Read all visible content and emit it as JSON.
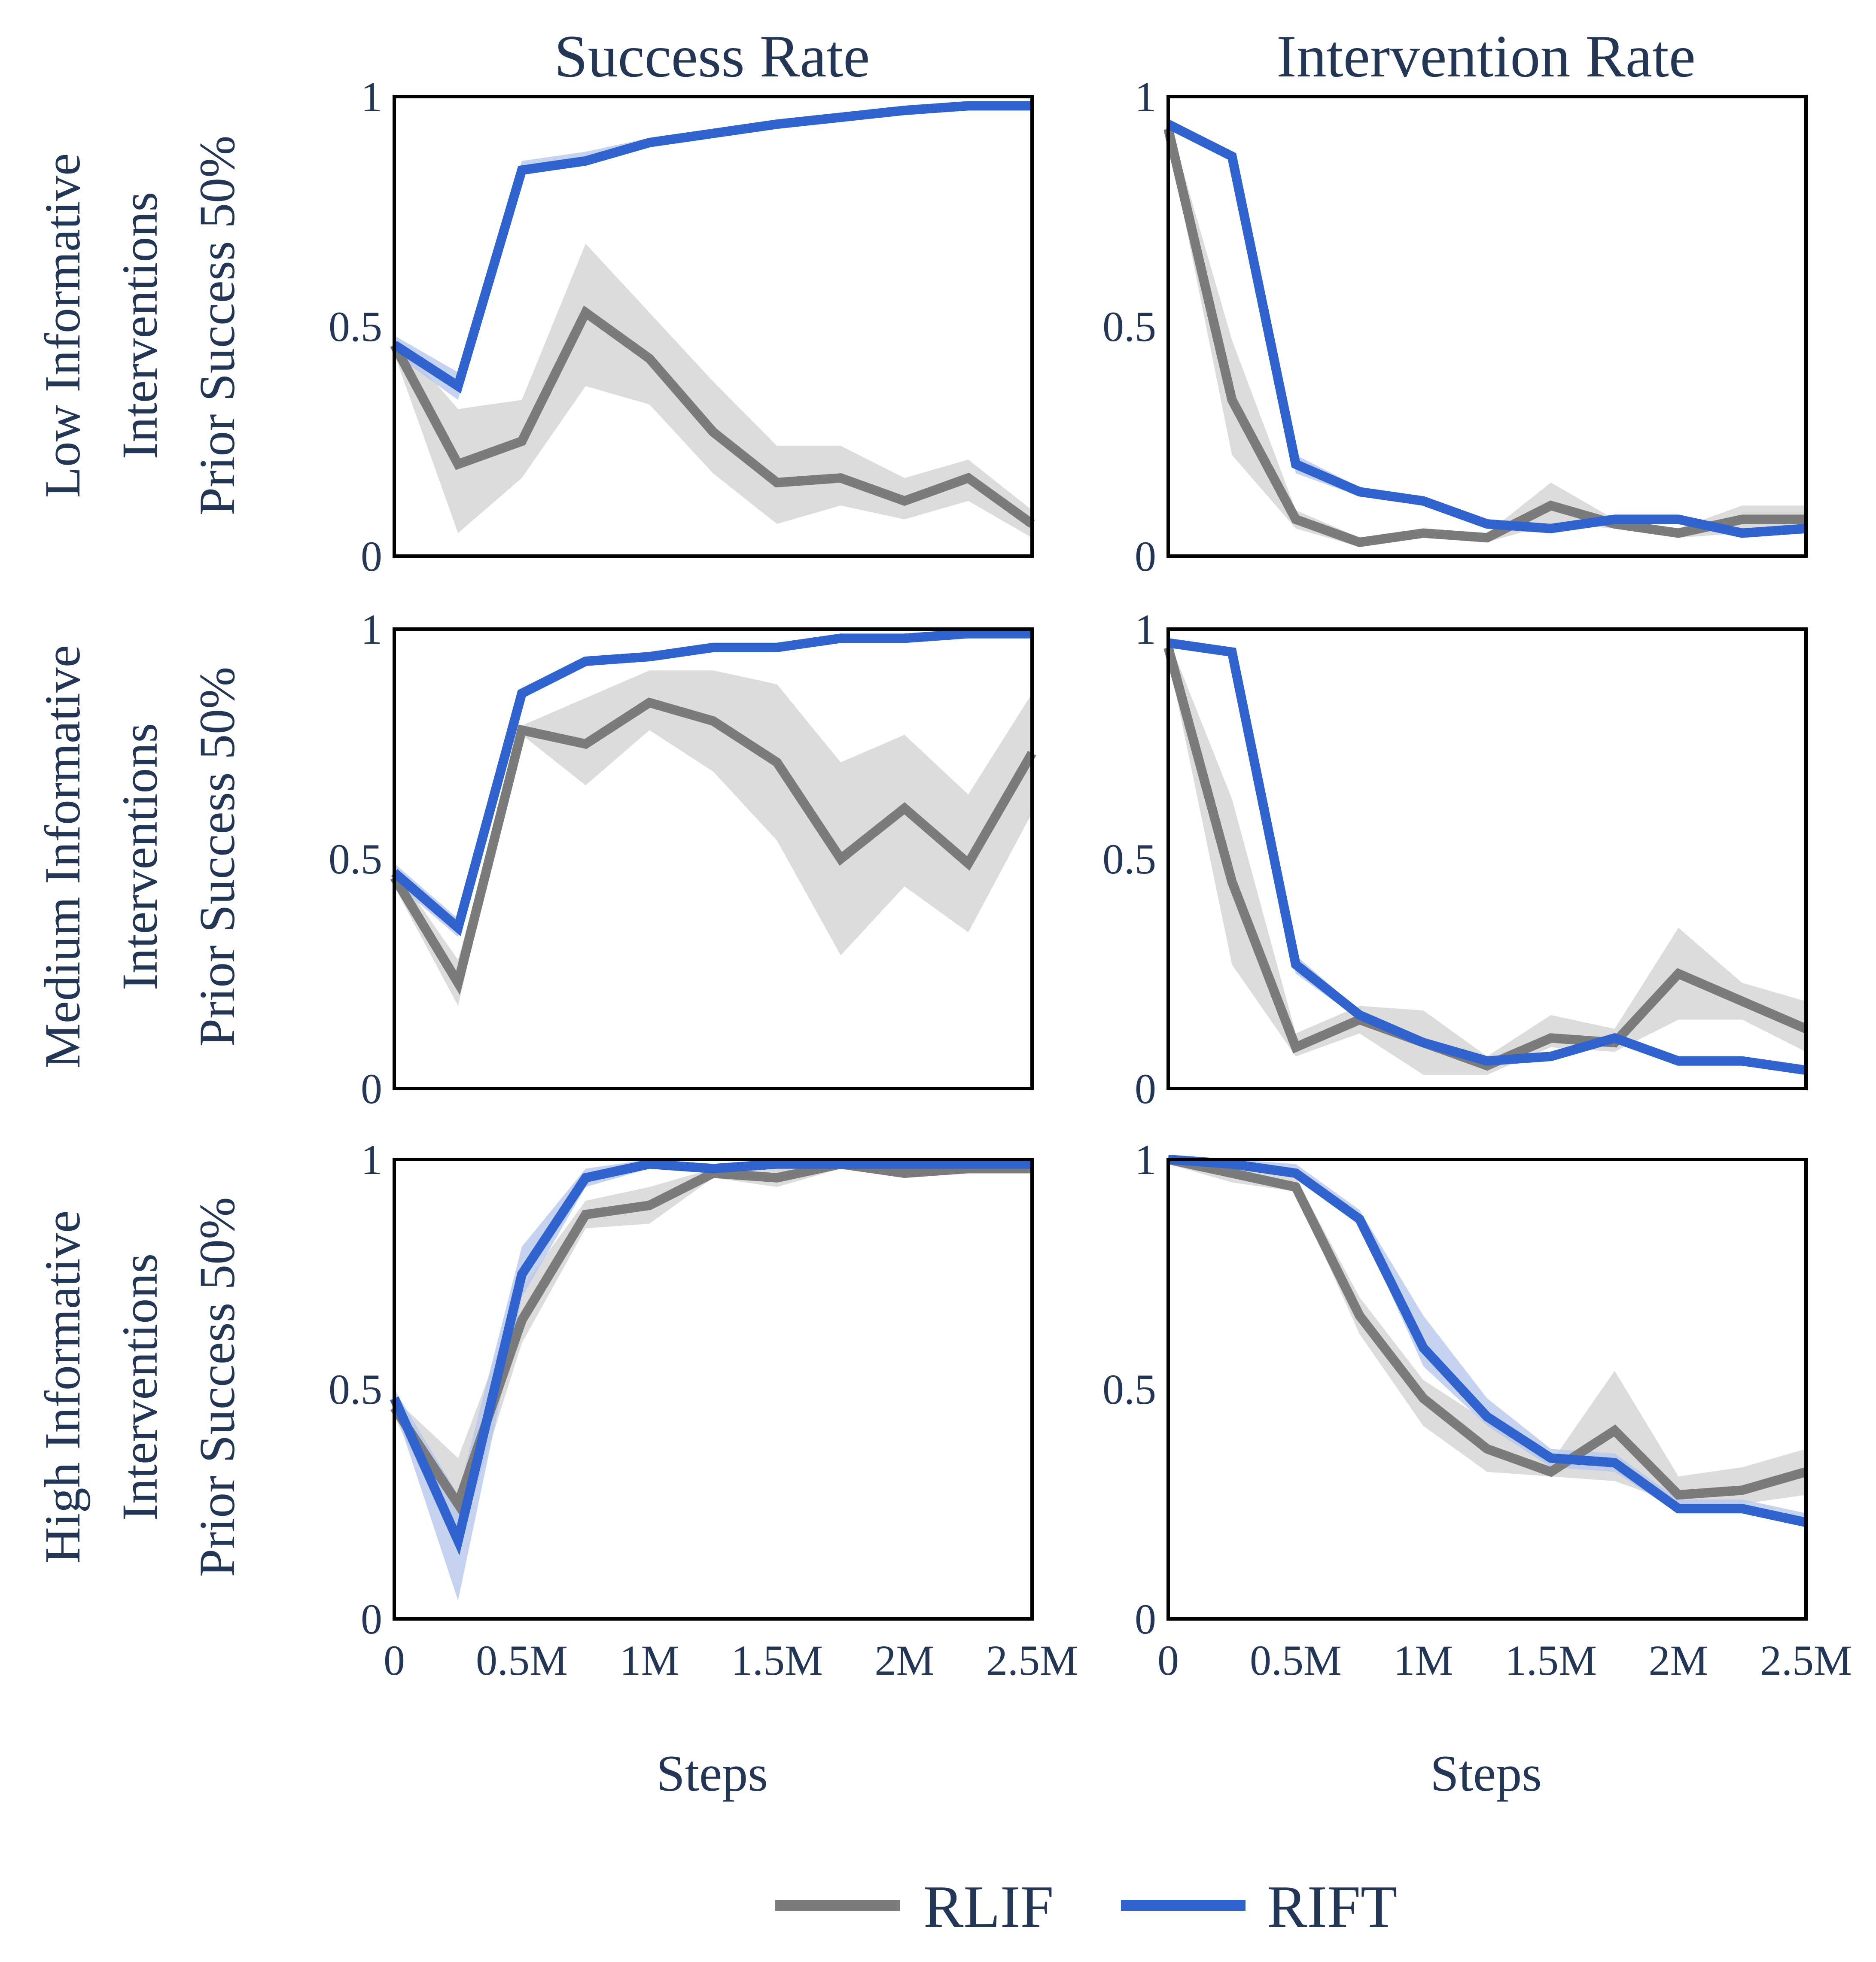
{
  "colors": {
    "RLIF": "#7b7b7b",
    "RLIF_band": "#d6d6d6",
    "RIFT": "#3163cf",
    "RIFT_band": "#b7c8ee",
    "text": "#233656"
  },
  "column_titles": [
    "Success Rate",
    "Intervention Rate"
  ],
  "row_labels": [
    [
      "Low Informative",
      "Interventions",
      "Prior Success 50%"
    ],
    [
      "Medium Informative",
      "Interventions",
      "Prior Success 50%"
    ],
    [
      "High Informative",
      "Interventions",
      "Prior Success 50%"
    ]
  ],
  "xlabel": "Steps",
  "xticks": [
    {
      "value": 0,
      "label": "0"
    },
    {
      "value": 0.5,
      "label": "0.5M"
    },
    {
      "value": 1,
      "label": "1M"
    },
    {
      "value": 1.5,
      "label": "1.5M"
    },
    {
      "value": 2,
      "label": "2M"
    },
    {
      "value": 2.5,
      "label": "2.5M"
    }
  ],
  "yticks": [
    {
      "value": 0,
      "label": "0"
    },
    {
      "value": 0.5,
      "label": "0.5"
    },
    {
      "value": 1,
      "label": "1"
    }
  ],
  "legend": [
    {
      "name": "RLIF",
      "color": "#7b7b7b"
    },
    {
      "name": "RIFT",
      "color": "#3163cf"
    }
  ],
  "chart_data": [
    {
      "type": "line",
      "panel": "row1-success",
      "xlim": [
        0,
        2.5
      ],
      "ylim": [
        0,
        1
      ],
      "x": [
        0,
        0.25,
        0.5,
        0.75,
        1.0,
        1.25,
        1.5,
        1.75,
        2.0,
        2.25,
        2.5
      ],
      "series": [
        {
          "name": "RLIF",
          "values": [
            0.46,
            0.2,
            0.25,
            0.53,
            0.43,
            0.27,
            0.16,
            0.17,
            0.12,
            0.17,
            0.07
          ],
          "lower": [
            0.44,
            0.05,
            0.17,
            0.37,
            0.33,
            0.18,
            0.07,
            0.11,
            0.08,
            0.12,
            0.04
          ],
          "upper": [
            0.48,
            0.32,
            0.34,
            0.68,
            0.53,
            0.38,
            0.24,
            0.24,
            0.17,
            0.21,
            0.1
          ]
        },
        {
          "name": "RIFT",
          "values": [
            0.46,
            0.37,
            0.84,
            0.86,
            0.9,
            0.92,
            0.94,
            0.955,
            0.97,
            0.98,
            0.98
          ],
          "lower": [
            0.44,
            0.34,
            0.83,
            0.85,
            0.89,
            0.915,
            0.935,
            0.95,
            0.965,
            0.975,
            0.975
          ],
          "upper": [
            0.48,
            0.4,
            0.86,
            0.88,
            0.91,
            0.925,
            0.945,
            0.96,
            0.975,
            0.985,
            0.985
          ]
        }
      ]
    },
    {
      "type": "line",
      "panel": "row1-intervention",
      "xlim": [
        0,
        2.5
      ],
      "ylim": [
        0,
        1
      ],
      "x": [
        0,
        0.25,
        0.5,
        0.75,
        1.0,
        1.25,
        1.5,
        1.75,
        2.0,
        2.25,
        2.5
      ],
      "series": [
        {
          "name": "RLIF",
          "values": [
            0.93,
            0.34,
            0.08,
            0.03,
            0.05,
            0.04,
            0.11,
            0.07,
            0.05,
            0.08,
            0.08
          ],
          "lower": [
            0.91,
            0.22,
            0.06,
            0.02,
            0.04,
            0.03,
            0.07,
            0.06,
            0.04,
            0.05,
            0.05
          ],
          "upper": [
            0.95,
            0.47,
            0.1,
            0.04,
            0.06,
            0.05,
            0.16,
            0.08,
            0.06,
            0.11,
            0.11
          ]
        },
        {
          "name": "RIFT",
          "values": [
            0.94,
            0.87,
            0.2,
            0.14,
            0.12,
            0.07,
            0.06,
            0.08,
            0.08,
            0.05,
            0.06
          ],
          "lower": [
            0.93,
            0.86,
            0.18,
            0.13,
            0.11,
            0.06,
            0.05,
            0.07,
            0.07,
            0.04,
            0.05
          ],
          "upper": [
            0.95,
            0.88,
            0.22,
            0.15,
            0.13,
            0.08,
            0.07,
            0.09,
            0.09,
            0.06,
            0.07
          ]
        }
      ]
    },
    {
      "type": "line",
      "panel": "row2-success",
      "xlim": [
        0,
        2.5
      ],
      "ylim": [
        0,
        1
      ],
      "x": [
        0,
        0.25,
        0.5,
        0.75,
        1.0,
        1.25,
        1.5,
        1.75,
        2.0,
        2.25,
        2.5
      ],
      "series": [
        {
          "name": "RLIF",
          "values": [
            0.46,
            0.23,
            0.78,
            0.75,
            0.84,
            0.8,
            0.71,
            0.5,
            0.61,
            0.49,
            0.73
          ],
          "lower": [
            0.44,
            0.18,
            0.77,
            0.66,
            0.78,
            0.69,
            0.54,
            0.29,
            0.44,
            0.34,
            0.6
          ],
          "upper": [
            0.48,
            0.28,
            0.79,
            0.85,
            0.91,
            0.91,
            0.88,
            0.71,
            0.77,
            0.64,
            0.86
          ]
        },
        {
          "name": "RIFT",
          "values": [
            0.47,
            0.35,
            0.86,
            0.93,
            0.94,
            0.96,
            0.96,
            0.98,
            0.98,
            0.99,
            0.99
          ],
          "lower": [
            0.45,
            0.33,
            0.85,
            0.92,
            0.935,
            0.955,
            0.955,
            0.975,
            0.975,
            0.985,
            0.985
          ],
          "upper": [
            0.49,
            0.37,
            0.87,
            0.94,
            0.945,
            0.965,
            0.965,
            0.985,
            0.985,
            0.995,
            0.995
          ]
        }
      ]
    },
    {
      "type": "line",
      "panel": "row2-intervention",
      "xlim": [
        0,
        2.5
      ],
      "ylim": [
        0,
        1
      ],
      "x": [
        0,
        0.25,
        0.5,
        0.75,
        1.0,
        1.25,
        1.5,
        1.75,
        2.0,
        2.25,
        2.5
      ],
      "series": [
        {
          "name": "RLIF",
          "values": [
            0.96,
            0.45,
            0.09,
            0.15,
            0.1,
            0.05,
            0.11,
            0.1,
            0.25,
            0.19,
            0.13
          ],
          "lower": [
            0.94,
            0.27,
            0.07,
            0.12,
            0.03,
            0.03,
            0.09,
            0.08,
            0.15,
            0.15,
            0.08
          ],
          "upper": [
            0.98,
            0.63,
            0.12,
            0.18,
            0.17,
            0.07,
            0.16,
            0.13,
            0.35,
            0.23,
            0.19
          ]
        },
        {
          "name": "RIFT",
          "values": [
            0.97,
            0.95,
            0.27,
            0.16,
            0.1,
            0.06,
            0.07,
            0.11,
            0.06,
            0.06,
            0.04
          ],
          "lower": [
            0.96,
            0.94,
            0.25,
            0.15,
            0.09,
            0.05,
            0.06,
            0.1,
            0.05,
            0.05,
            0.03
          ],
          "upper": [
            0.98,
            0.96,
            0.29,
            0.17,
            0.11,
            0.07,
            0.08,
            0.12,
            0.07,
            0.07,
            0.05
          ]
        }
      ]
    },
    {
      "type": "line",
      "panel": "row3-success",
      "xlim": [
        0,
        2.5
      ],
      "ylim": [
        0,
        1
      ],
      "x": [
        0,
        0.25,
        0.5,
        0.75,
        1.0,
        1.25,
        1.5,
        1.75,
        2.0,
        2.25,
        2.5
      ],
      "series": [
        {
          "name": "RLIF",
          "values": [
            0.46,
            0.25,
            0.65,
            0.88,
            0.9,
            0.97,
            0.96,
            0.99,
            0.97,
            0.98,
            0.98
          ],
          "lower": [
            0.44,
            0.16,
            0.6,
            0.85,
            0.86,
            0.96,
            0.94,
            0.98,
            0.96,
            0.97,
            0.97
          ],
          "upper": [
            0.48,
            0.35,
            0.72,
            0.91,
            0.94,
            0.98,
            0.98,
            1.0,
            0.98,
            0.99,
            0.99
          ]
        },
        {
          "name": "RIFT",
          "values": [
            0.48,
            0.17,
            0.75,
            0.96,
            0.99,
            0.98,
            0.99,
            0.99,
            0.99,
            0.99,
            0.99
          ],
          "lower": [
            0.46,
            0.04,
            0.7,
            0.94,
            0.98,
            0.97,
            0.985,
            0.985,
            0.985,
            0.985,
            0.985
          ],
          "upper": [
            0.5,
            0.27,
            0.81,
            0.98,
            1.0,
            0.99,
            0.995,
            0.995,
            0.995,
            0.995,
            0.995
          ]
        }
      ]
    },
    {
      "type": "line",
      "panel": "row3-intervention",
      "xlim": [
        0,
        2.5
      ],
      "ylim": [
        0,
        1
      ],
      "x": [
        0,
        0.25,
        0.5,
        0.75,
        1.0,
        1.25,
        1.5,
        1.75,
        2.0,
        2.25,
        2.5
      ],
      "series": [
        {
          "name": "RLIF",
          "values": [
            1.0,
            0.97,
            0.94,
            0.66,
            0.48,
            0.37,
            0.32,
            0.41,
            0.27,
            0.28,
            0.32
          ],
          "lower": [
            0.99,
            0.95,
            0.93,
            0.62,
            0.42,
            0.32,
            0.31,
            0.3,
            0.25,
            0.25,
            0.27
          ],
          "upper": [
            1.0,
            0.99,
            0.96,
            0.7,
            0.52,
            0.43,
            0.34,
            0.54,
            0.31,
            0.33,
            0.37
          ]
        },
        {
          "name": "RIFT",
          "values": [
            1.0,
            0.99,
            0.97,
            0.87,
            0.59,
            0.44,
            0.35,
            0.34,
            0.24,
            0.24,
            0.21
          ],
          "lower": [
            0.99,
            0.98,
            0.96,
            0.86,
            0.55,
            0.42,
            0.33,
            0.32,
            0.23,
            0.23,
            0.2
          ],
          "upper": [
            1.0,
            1.0,
            0.99,
            0.89,
            0.66,
            0.48,
            0.37,
            0.36,
            0.26,
            0.26,
            0.23
          ]
        }
      ]
    }
  ]
}
